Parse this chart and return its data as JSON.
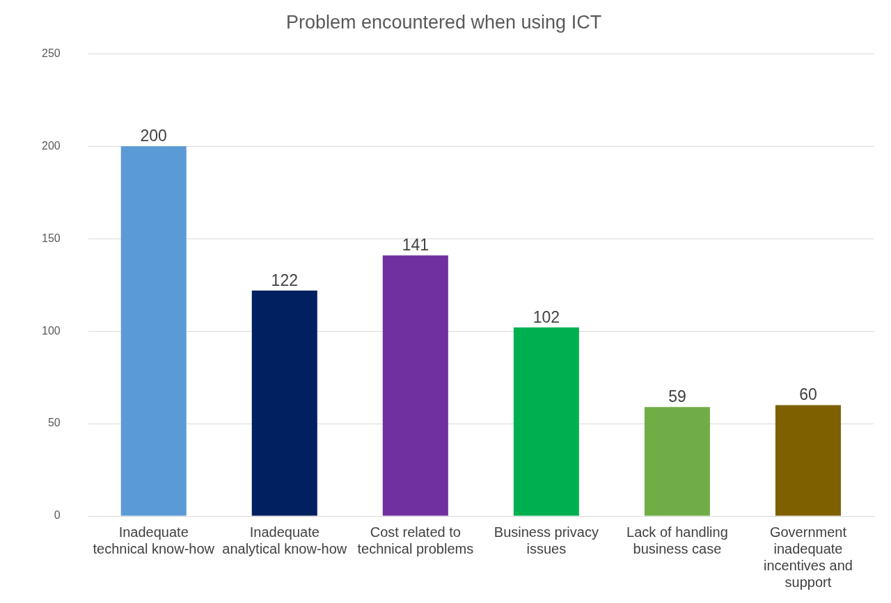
{
  "chart_data": {
    "type": "bar",
    "title": "Problem encountered when using ICT",
    "categories": [
      "Inadequate technical know-how",
      "Inadequate analytical know-how",
      "Cost related to technical problems",
      "Business privacy issues",
      "Lack of handling business case",
      "Government inadequate incentives and support"
    ],
    "values": [
      200,
      122,
      141,
      102,
      59,
      60
    ],
    "colors": [
      "#5b9bd5",
      "#002060",
      "#7030a0",
      "#00b050",
      "#70ad47",
      "#7f6000"
    ],
    "ylim": [
      0,
      250
    ],
    "yticks": [
      0,
      50,
      100,
      150,
      200,
      250
    ],
    "grid": "y",
    "legend": false,
    "data_labels": true
  }
}
